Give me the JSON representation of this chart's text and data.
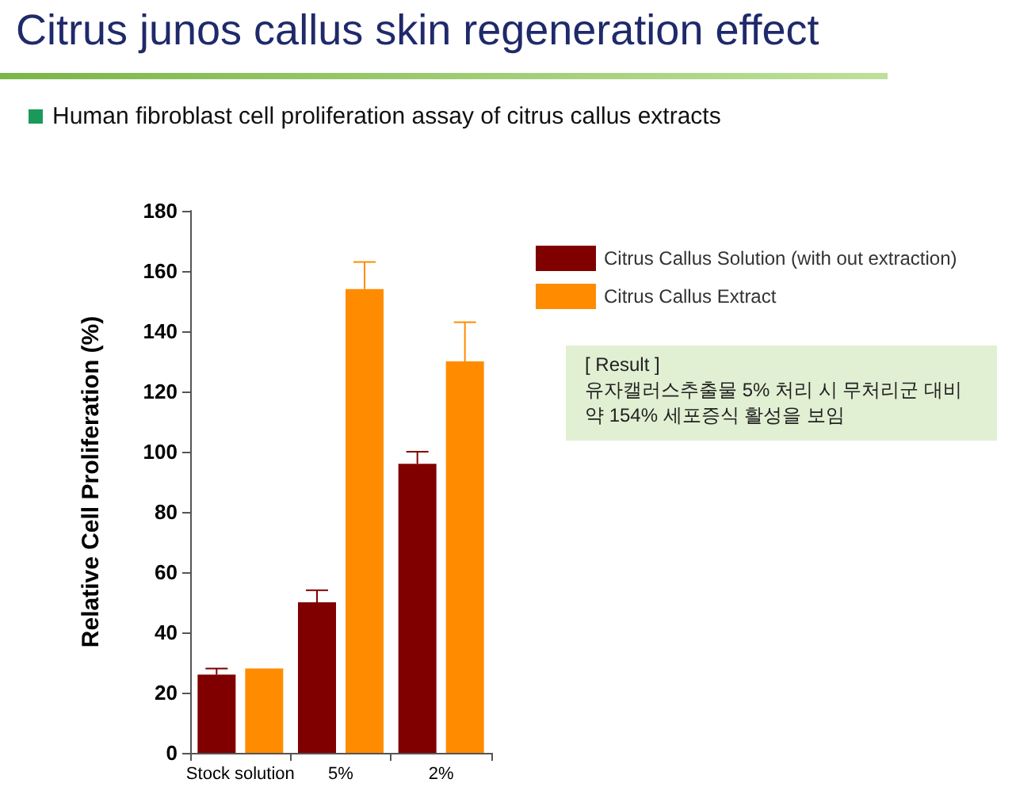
{
  "chart_data": {
    "type": "bar",
    "title": "Citrus junos callus skin regeneration effect",
    "subtitle": "Human fibroblast cell proliferation assay of citrus callus extracts",
    "ylabel": "Relative Cell Proliferation (%)",
    "categories": [
      "Stock solution",
      "5%",
      "2%"
    ],
    "series": [
      {
        "name": "Citrus Callus Solution (with out extraction)",
        "color": "#800000",
        "values": [
          26,
          50,
          96
        ],
        "errors": [
          [
            26,
            28
          ],
          [
            50,
            54
          ],
          [
            96,
            100
          ]
        ]
      },
      {
        "name": "Citrus Callus Extract",
        "color": "#ff8c00",
        "values": [
          28,
          154,
          130
        ],
        "errors": [
          null,
          [
            154,
            163
          ],
          [
            130,
            143
          ]
        ]
      }
    ],
    "ylim": [
      0,
      180
    ],
    "yticks": [
      0,
      20,
      40,
      60,
      80,
      100,
      120,
      140,
      160,
      180
    ],
    "grid": false,
    "legend": "right",
    "annotations": [
      "[ Result ]",
      "유자캘러스추출물 5% 처리 시 무처리군 대비",
      "약 154% 세포증식 활성을 보임"
    ]
  }
}
